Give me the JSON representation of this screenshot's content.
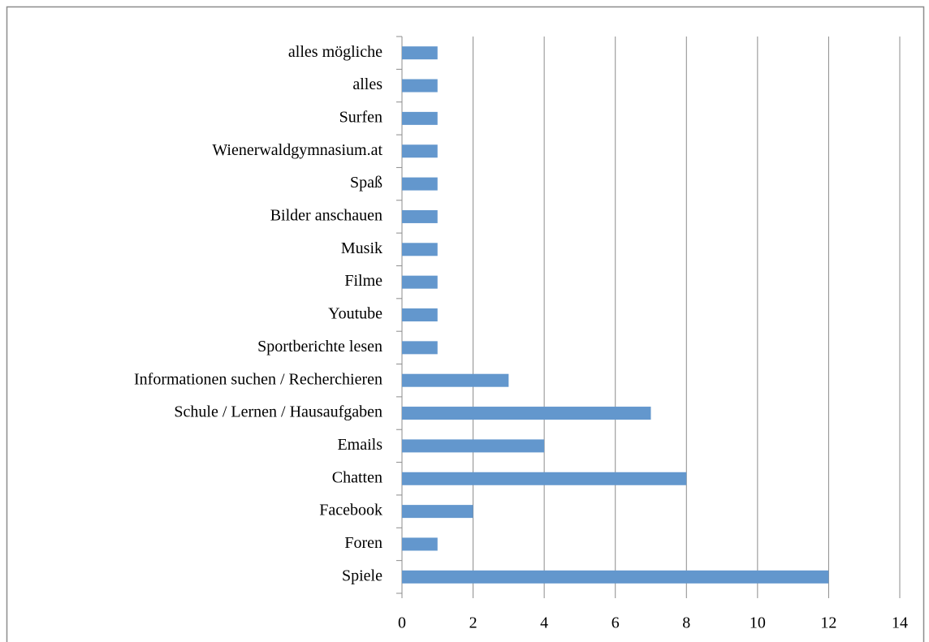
{
  "chart_data": {
    "type": "barh",
    "categories": [
      "Spiele",
      "Foren",
      "Facebook",
      "Chatten",
      "Emails",
      "Schule / Lernen / Hausaufgaben",
      "Informationen suchen / Recherchieren",
      "Sportberichte lesen",
      "Youtube",
      "Filme",
      "Musik",
      "Bilder anschauen",
      "Spaß",
      "Wienerwaldgymnasium.at",
      "Surfen",
      "alles",
      "alles mögliche"
    ],
    "values": [
      12,
      1,
      2,
      8,
      4,
      7,
      3,
      1,
      1,
      1,
      1,
      1,
      1,
      1,
      1,
      1,
      1
    ],
    "color": "#6397cd",
    "xlim": [
      0,
      14
    ],
    "xticks": [
      0,
      2,
      4,
      6,
      8,
      10,
      12,
      14
    ],
    "grid": true
  }
}
